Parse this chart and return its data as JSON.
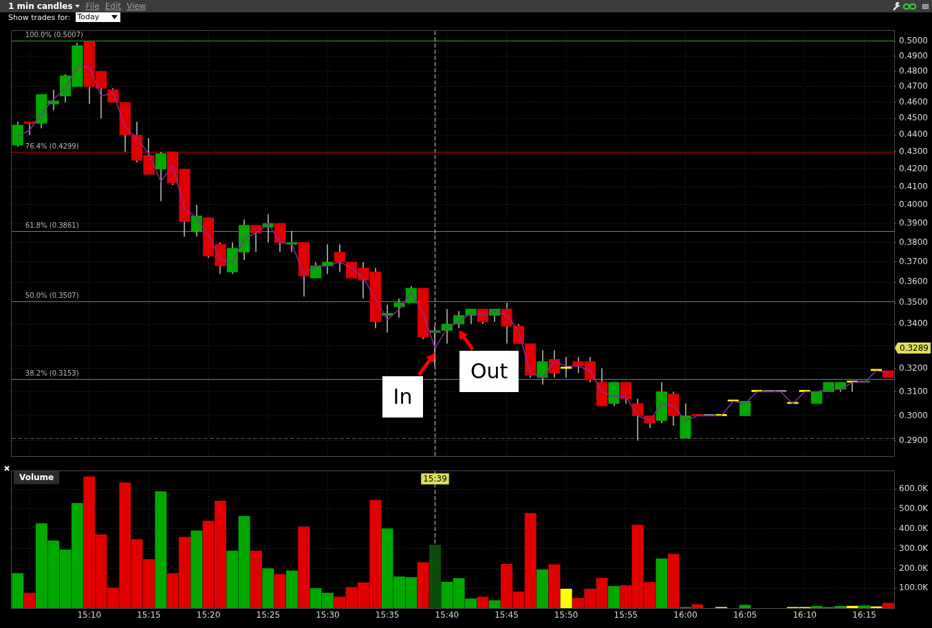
{
  "chart_data": [
    {
      "type": "candlestick",
      "title": "1 min candles",
      "x": [
        15.0667,
        15.0833,
        15.1,
        15.1167,
        15.1333,
        15.15,
        15.1667,
        15.1833,
        15.2,
        15.2167,
        15.2333,
        15.25,
        15.2667,
        15.2833,
        15.3,
        15.3167,
        15.3333,
        15.35,
        15.3667,
        15.3833,
        15.4,
        15.4167,
        15.4333,
        15.45,
        15.4667,
        15.4833,
        15.5,
        15.5167,
        15.5333,
        15.55,
        15.5667,
        15.5833,
        15.6,
        15.6167,
        15.6333,
        15.65,
        15.6667,
        15.6833,
        15.7,
        15.7167,
        15.7333,
        15.75,
        15.7667,
        15.7833,
        15.8,
        15.8167,
        15.8333,
        15.85,
        15.8667,
        15.8833,
        15.9,
        15.9167,
        15.9333,
        15.95,
        15.9667,
        15.9833,
        16,
        16.0167,
        16.0333,
        16.05,
        16.0667,
        16.0833,
        16.1,
        16.1167,
        16.1333,
        16.15,
        16.1667,
        16.1833,
        16.2,
        16.2167,
        16.2333,
        16.25,
        16.2667,
        16.2833
      ],
      "series": [
        {
          "color": "#c4c4c4",
          "ohlc": [
            [
              0.434,
              0.448,
              0.433,
              0.446
            ],
            [
              0.448,
              0.448,
              0.44,
              0.447
            ],
            [
              0.447,
              0.465,
              0.444,
              0.465
            ],
            [
              0.459,
              0.468,
              0.455,
              0.461
            ],
            [
              0.464,
              0.478,
              0.46,
              0.477
            ],
            [
              0.47,
              0.499,
              0.47,
              0.497
            ],
            [
              0.5,
              0.5,
              0.459,
              0.47
            ],
            [
              0.48,
              0.48,
              0.45,
              0.469
            ],
            [
              0.468,
              0.469,
              0.46,
              0.46
            ],
            [
              0.46,
              0.46,
              0.43,
              0.44
            ],
            [
              0.44,
              0.448,
              0.424,
              0.425
            ],
            [
              0.428,
              0.438,
              0.417,
              0.417
            ],
            [
              0.42,
              0.43,
              0.402,
              0.429
            ],
            [
              0.43,
              0.43,
              0.411,
              0.412
            ],
            [
              0.42,
              0.42,
              0.383,
              0.391
            ],
            [
              0.386,
              0.4,
              0.383,
              0.394
            ],
            [
              0.393,
              0.393,
              0.372,
              0.373
            ],
            [
              0.379,
              0.38,
              0.364,
              0.368
            ],
            [
              0.365,
              0.38,
              0.364,
              0.377
            ],
            [
              0.375,
              0.392,
              0.371,
              0.389
            ],
            [
              0.389,
              0.389,
              0.375,
              0.385
            ],
            [
              0.388,
              0.395,
              0.38,
              0.39
            ],
            [
              0.39,
              0.39,
              0.375,
              0.38
            ],
            [
              0.379,
              0.386,
              0.375,
              0.38
            ],
            [
              0.38,
              0.38,
              0.353,
              0.363
            ],
            [
              0.362,
              0.37,
              0.362,
              0.368
            ],
            [
              0.368,
              0.379,
              0.364,
              0.37
            ],
            [
              0.375,
              0.379,
              0.365,
              0.37
            ],
            [
              0.37,
              0.37,
              0.362,
              0.362
            ],
            [
              0.367,
              0.37,
              0.352,
              0.361
            ],
            [
              0.365,
              0.367,
              0.338,
              0.341
            ],
            [
              0.344,
              0.349,
              0.336,
              0.345
            ],
            [
              0.348,
              0.352,
              0.343,
              0.35
            ],
            [
              0.35,
              0.358,
              0.35,
              0.357
            ],
            [
              0.357,
              0.357,
              0.333,
              0.334
            ],
            [
              0.336,
              0.339,
              0.321,
              0.337
            ],
            [
              0.337,
              0.347,
              0.331,
              0.34
            ],
            [
              0.34,
              0.346,
              0.338,
              0.344
            ],
            [
              0.344,
              0.347,
              0.34,
              0.347
            ],
            [
              0.347,
              0.347,
              0.34,
              0.341
            ],
            [
              0.344,
              0.347,
              0.341,
              0.347
            ],
            [
              0.347,
              0.35,
              0.331,
              0.339
            ],
            [
              0.339,
              0.34,
              0.331,
              0.331
            ],
            [
              0.331,
              0.331,
              0.316,
              0.317
            ],
            [
              0.316,
              0.328,
              0.313,
              0.323
            ],
            [
              0.324,
              0.328,
              0.316,
              0.318
            ],
            [
              0.32,
              0.325,
              0.316,
              0.32
            ],
            [
              0.323,
              0.325,
              0.318,
              0.321
            ],
            [
              0.323,
              0.325,
              0.314,
              0.315
            ],
            [
              0.314,
              0.32,
              0.304,
              0.304
            ],
            [
              0.305,
              0.314,
              0.304,
              0.314
            ],
            [
              0.314,
              0.314,
              0.305,
              0.307
            ],
            [
              0.305,
              0.307,
              0.29,
              0.3
            ],
            [
              0.3,
              0.3,
              0.295,
              0.297
            ],
            [
              0.298,
              0.314,
              0.297,
              0.31
            ],
            [
              0.309,
              0.31,
              0.296,
              0.3
            ],
            [
              0.291,
              0.305,
              0.291,
              0.3
            ],
            [
              0.3,
              0.3,
              0.3,
              0.3
            ],
            [
              0.3,
              0.3,
              0.3,
              0.3
            ],
            [
              0.3,
              0.3,
              0.3,
              0.3
            ],
            [
              0.306,
              0.306,
              0.306,
              0.306
            ],
            [
              0.3,
              0.306,
              0.3,
              0.306
            ],
            [
              0.31,
              0.31,
              0.31,
              0.31
            ],
            [
              0.31,
              0.31,
              0.31,
              0.31
            ],
            [
              0.31,
              0.31,
              0.31,
              0.31
            ],
            [
              0.305,
              0.305,
              0.305,
              0.305
            ],
            [
              0.31,
              0.31,
              0.31,
              0.31
            ],
            [
              0.305,
              0.31,
              0.305,
              0.31
            ],
            [
              0.31,
              0.314,
              0.31,
              0.314
            ],
            [
              0.311,
              0.314,
              0.31,
              0.314
            ],
            [
              0.314,
              0.314,
              0.31,
              0.314
            ],
            [
              0.314,
              0.314,
              0.314,
              0.314
            ],
            [
              0.319,
              0.319,
              0.319,
              0.319
            ],
            [
              0.319,
              0.319,
              0.316,
              0.316
            ]
          ],
          "colors": [
            "#00a800",
            "#e00000",
            "#00a800",
            "#00a800",
            "#00a800",
            "#00a800",
            "#e00000",
            "#e00000",
            "#e00000",
            "#e00000",
            "#e00000",
            "#e00000",
            "#00a800",
            "#e00000",
            "#e00000",
            "#00a800",
            "#e00000",
            "#e00000",
            "#00a800",
            "#00a800",
            "#e00000",
            "#00a800",
            "#e00000",
            "#00a800",
            "#e00000",
            "#00a800",
            "#00a800",
            "#e00000",
            "#e00000",
            "#e00000",
            "#e00000",
            "#00a800",
            "#00a800",
            "#00a800",
            "#e00000",
            "#3c6a3c",
            "#00a800",
            "#00a800",
            "#00a800",
            "#e00000",
            "#00a800",
            "#e00000",
            "#e00000",
            "#e00000",
            "#00a800",
            "#e00000",
            "#ffff00",
            "#e00000",
            "#e00000",
            "#e00000",
            "#00a800",
            "#e00000",
            "#e00000",
            "#e00000",
            "#00a800",
            "#e00000",
            "#00a800",
            "#e00000",
            "#8c8c8c",
            "#ffff00",
            "#ffff00",
            "#00a800",
            "#ffff00",
            "#8c8c8c",
            "#8c8c8c",
            "#ffff00",
            "#ffff00",
            "#00a800",
            "#00a800",
            "#00a800",
            "#ffff00",
            "#00a800",
            "#ffff00",
            "#e00000"
          ]
        },
        {
          "type": "line",
          "color": "#8e2a9e",
          "values": [
            0.439,
            0.443,
            0.453,
            0.462,
            0.469,
            0.483,
            0.483,
            0.464,
            0.466,
            0.445,
            0.438,
            0.429,
            0.413,
            0.422,
            0.398,
            0.393,
            0.384,
            0.371,
            0.37,
            0.382,
            0.385,
            0.39,
            0.38,
            0.379,
            0.364,
            0.368,
            0.368,
            0.37,
            0.367,
            0.362,
            0.352,
            0.342,
            0.347,
            0.355,
            0.345,
            0.329,
            0.338,
            0.341,
            0.345,
            0.344,
            0.346,
            0.344,
            0.337,
            0.318,
            0.316,
            0.323,
            0.321,
            0.321,
            0.319,
            0.31,
            0.308,
            0.308,
            0.3,
            0.298,
            0.305,
            0.304,
            0.298,
            0.3,
            0.3,
            0.3,
            0.306,
            0.305,
            0.31,
            0.31,
            0.31,
            0.305,
            0.31,
            0.31,
            0.311,
            0.311,
            0.314,
            0.314,
            0.319,
            0.318
          ]
        }
      ],
      "log": true,
      "ylim": [
        0.284,
        0.507
      ],
      "yticks": [
        {
          "value": 0.29,
          "label": "0.2900"
        },
        {
          "value": 0.3,
          "label": "0.3000"
        },
        {
          "value": 0.31,
          "label": "0.3100"
        },
        {
          "value": 0.32,
          "label": "0.3200"
        },
        {
          "value": 0.33,
          "label": null
        },
        {
          "value": 0.34,
          "label": "0.3400"
        },
        {
          "value": 0.35,
          "label": "0.3500"
        },
        {
          "value": 0.36,
          "label": "0.3600"
        },
        {
          "value": 0.37,
          "label": "0.3700"
        },
        {
          "value": 0.38,
          "label": "0.3800"
        },
        {
          "value": 0.39,
          "label": "0.3900"
        },
        {
          "value": 0.4,
          "label": "0.4000"
        },
        {
          "value": 0.41,
          "label": "0.4100"
        },
        {
          "value": 0.42,
          "label": "0.4200"
        },
        {
          "value": 0.43,
          "label": "0.4300"
        },
        {
          "value": 0.44,
          "label": "0.4400"
        },
        {
          "value": 0.45,
          "label": "0.4500"
        },
        {
          "value": 0.46,
          "label": "0.4600"
        },
        {
          "value": 0.47,
          "label": "0.4700"
        },
        {
          "value": 0.48,
          "label": "0.4800"
        },
        {
          "value": 0.49,
          "label": "0.4900"
        },
        {
          "value": 0.5,
          "label": "0.5000"
        }
      ],
      "xlim": [
        15.0583,
        16.2917
      ],
      "xticks": [
        {
          "value": 15.0833,
          "label": null
        },
        {
          "value": 15.1667,
          "label": null
        },
        {
          "value": 15.25,
          "label": null
        },
        {
          "value": 15.3333,
          "label": null
        },
        {
          "value": 15.4167,
          "label": null
        },
        {
          "value": 15.5,
          "label": null
        },
        {
          "value": 15.5833,
          "label": null
        },
        {
          "value": 15.6667,
          "label": null
        },
        {
          "value": 15.75,
          "label": null
        },
        {
          "value": 15.8333,
          "label": null
        },
        {
          "value": 15.9167,
          "label": null
        },
        {
          "value": 16,
          "label": null
        },
        {
          "value": 16.0833,
          "label": null
        },
        {
          "value": 16.1667,
          "label": null
        },
        {
          "value": 16.25,
          "label": null
        }
      ],
      "tick_labels": "y",
      "grid": true,
      "marker": "none",
      "ref_lines": [
        {
          "axis": "y",
          "value": 0.5007,
          "label": "100.0% (0.5007)",
          "color": "#1fa01f"
        },
        {
          "axis": "y",
          "value": 0.4299,
          "label": "76.4% (0.4299)",
          "color": "#a00000"
        },
        {
          "axis": "y",
          "value": 0.3861,
          "label": "61.8% (0.3861)",
          "color": "#10a8b8"
        },
        {
          "axis": "y",
          "value": 0.3507,
          "label": "50.0% (0.3507)",
          "color": "#a07800"
        },
        {
          "axis": "y",
          "value": 0.3153,
          "label": "38.2% (0.3153)",
          "color": "#10a8b8"
        },
        {
          "axis": "y",
          "value": 0.291,
          "color": "#5a5a5a",
          "line_style": "dashed"
        },
        {
          "axis": "x",
          "value": 15.65,
          "color": "#d0d0d0",
          "line_style": "dashed"
        }
      ],
      "annotations": [
        "File",
        "Edit",
        "View",
        "Show trades for:",
        "Today",
        "0.3289",
        {
          "text": "In",
          "x": 15.65,
          "y": 0.327
        },
        {
          "text": "Out",
          "x": 15.6833,
          "y": 0.337
        }
      ]
    },
    {
      "type": "bar",
      "title": "Volume",
      "x": [
        15.0667,
        15.0833,
        15.1,
        15.1167,
        15.1333,
        15.15,
        15.1667,
        15.1833,
        15.2,
        15.2167,
        15.2333,
        15.25,
        15.2667,
        15.2833,
        15.3,
        15.3167,
        15.3333,
        15.35,
        15.3667,
        15.3833,
        15.4,
        15.4167,
        15.4333,
        15.45,
        15.4667,
        15.4833,
        15.5,
        15.5167,
        15.5333,
        15.55,
        15.5667,
        15.5833,
        15.6,
        15.6167,
        15.6333,
        15.65,
        15.6667,
        15.6833,
        15.7,
        15.7167,
        15.7333,
        15.75,
        15.7667,
        15.7833,
        15.8,
        15.8167,
        15.8333,
        15.85,
        15.8667,
        15.8833,
        15.9,
        15.9167,
        15.9333,
        15.95,
        15.9667,
        15.9833,
        16,
        16.0167,
        16.0333,
        16.05,
        16.0667,
        16.0833,
        16.1,
        16.1167,
        16.1333,
        16.15,
        16.1667,
        16.1833,
        16.2,
        16.2167,
        16.2333,
        16.25,
        16.2667,
        16.2833
      ],
      "values": [
        175,
        76,
        427,
        340,
        294,
        529,
        663,
        370,
        102,
        632,
        347,
        245,
        588,
        175,
        358,
        390,
        440,
        540,
        289,
        463,
        289,
        199,
        170,
        188,
        410,
        99,
        76,
        56,
        105,
        128,
        544,
        401,
        158,
        155,
        230,
        318,
        131,
        150,
        47,
        56,
        38,
        221,
        82,
        478,
        194,
        219,
        96,
        50,
        96,
        151,
        110,
        114,
        420,
        130,
        249,
        272,
        4,
        18,
        null,
        4,
        null,
        15,
        null,
        null,
        null,
        4,
        4,
        9,
        4,
        9,
        10,
        12,
        7,
        25
      ],
      "colors": [
        "#00a800",
        "#e00000",
        "#00a800",
        "#00a800",
        "#00a800",
        "#00a800",
        "#e00000",
        "#e00000",
        "#e00000",
        "#e00000",
        "#e00000",
        "#e00000",
        "#00a800",
        "#e00000",
        "#e00000",
        "#00a800",
        "#e00000",
        "#e00000",
        "#00a800",
        "#00a800",
        "#e00000",
        "#00a800",
        "#e00000",
        "#00a800",
        "#e00000",
        "#00a800",
        "#00a800",
        "#e00000",
        "#e00000",
        "#e00000",
        "#e00000",
        "#00a800",
        "#00a800",
        "#00a800",
        "#e00000",
        "#0b4d0b",
        "#00a800",
        "#00a800",
        "#00a800",
        "#e00000",
        "#00a800",
        "#e00000",
        "#e00000",
        "#e00000",
        "#00a800",
        "#e00000",
        "#ffff00",
        "#e00000",
        "#e00000",
        "#e00000",
        "#00a800",
        "#e00000",
        "#e00000",
        "#e00000",
        "#00a800",
        "#e00000",
        "#00a800",
        "#e00000",
        null,
        "#ffff00",
        null,
        "#00a800",
        null,
        null,
        null,
        "#ffff00",
        "#ffff00",
        "#00a800",
        "#00a800",
        "#00a800",
        "#ffff00",
        "#00a800",
        "#ffff00",
        "#e00000"
      ],
      "ylim": [
        0,
        690
      ],
      "yticks": [
        {
          "value": 100,
          "label": "100.0K"
        },
        {
          "value": 200,
          "label": "200.0K"
        },
        {
          "value": 300,
          "label": "300.0K"
        },
        {
          "value": 400,
          "label": "400.0K"
        },
        {
          "value": 500,
          "label": "500.0K"
        },
        {
          "value": 600,
          "label": "600.0K"
        }
      ],
      "xlim": [
        15.0583,
        16.2917
      ],
      "xticks": [
        {
          "value": 15.0833,
          "label": null
        },
        {
          "value": 15.1667,
          "label": "15:10"
        },
        {
          "value": 15.25,
          "label": "15:15"
        },
        {
          "value": 15.3333,
          "label": "15:20"
        },
        {
          "value": 15.4167,
          "label": "15:25"
        },
        {
          "value": 15.5,
          "label": "15:30"
        },
        {
          "value": 15.5833,
          "label": "15:35"
        },
        {
          "value": 15.6667,
          "label": "15:40"
        },
        {
          "value": 15.75,
          "label": "15:45"
        },
        {
          "value": 15.8333,
          "label": "15:50"
        },
        {
          "value": 15.9167,
          "label": "15:55"
        },
        {
          "value": 16,
          "label": "16:00"
        },
        {
          "value": 16.0833,
          "label": "16:05"
        },
        {
          "value": 16.1667,
          "label": "16:10"
        },
        {
          "value": 16.25,
          "label": "16:15"
        }
      ],
      "grid": true,
      "ref_lines": [
        {
          "axis": "x",
          "value": 15.65,
          "color": "#d0d0d0",
          "line_style": "dashed"
        }
      ],
      "annotations": [
        "15:39"
      ]
    }
  ]
}
